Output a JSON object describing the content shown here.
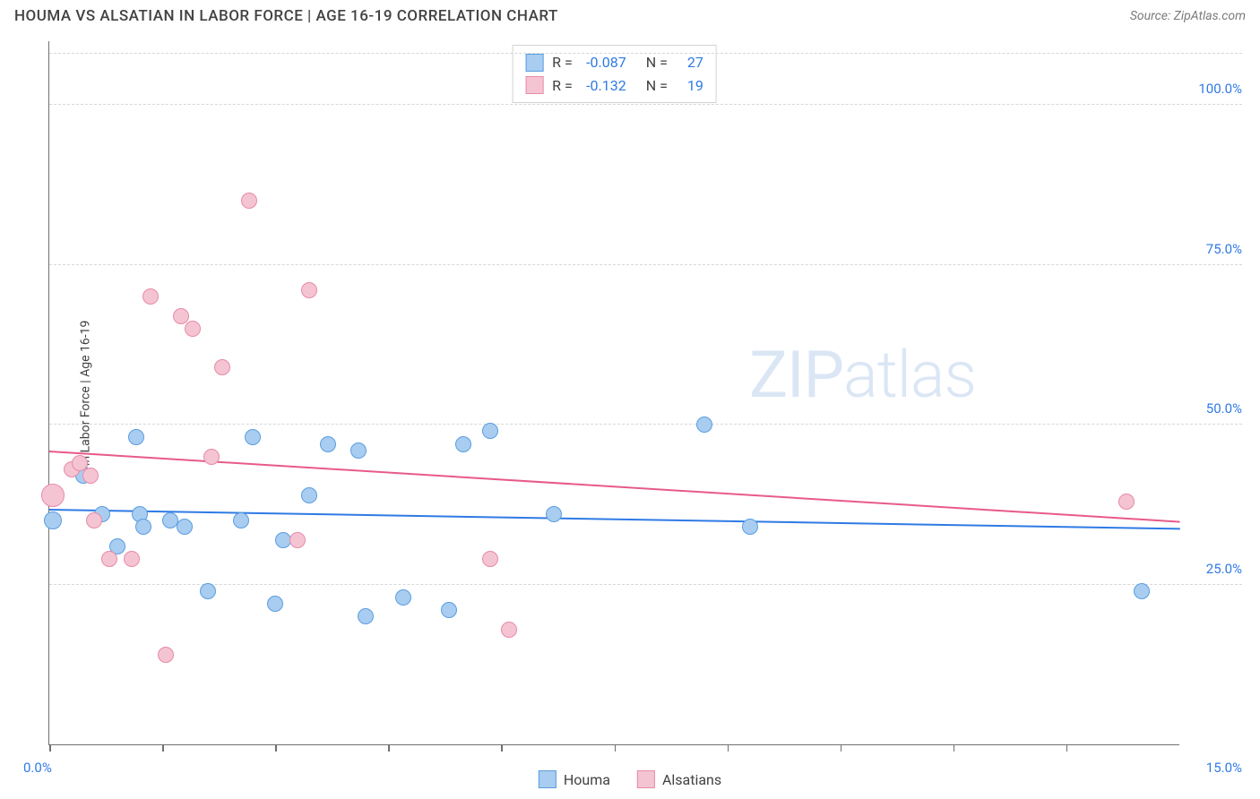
{
  "header": {
    "title": "HOUMA VS ALSATIAN IN LABOR FORCE | AGE 16-19 CORRELATION CHART",
    "source": "Source: ZipAtlas.com"
  },
  "chart": {
    "type": "scatter",
    "ylabel": "In Labor Force | Age 16-19",
    "xlim": [
      0,
      15
    ],
    "ylim": [
      0,
      110
    ],
    "xticks_pct": [
      0,
      10,
      20,
      30,
      40,
      50,
      60,
      70,
      80,
      90
    ],
    "ygrid": [
      {
        "val": 25,
        "label": "25.0%"
      },
      {
        "val": 50,
        "label": "50.0%"
      },
      {
        "val": 75,
        "label": "75.0%"
      },
      {
        "val": 100,
        "label": "100.0%"
      },
      {
        "val": 108,
        "label": ""
      }
    ],
    "xlabel_min": "0.0%",
    "xlabel_max": "15.0%",
    "background_color": "#ffffff",
    "grid_color": "#d7d7d7",
    "axis_color": "#707070",
    "watermark": "ZIPatlas",
    "series": [
      {
        "name": "Houma",
        "fill": "#a8cdf0",
        "stroke": "#5a9de0",
        "trend_color": "#2f7ae5",
        "R": "-0.087",
        "N": "27",
        "trend": {
          "y1": 37,
          "y2": 34
        },
        "points": [
          {
            "x": 0.05,
            "y": 35,
            "r": 10
          },
          {
            "x": 0.4,
            "y": 43,
            "r": 9
          },
          {
            "x": 0.45,
            "y": 42,
            "r": 9
          },
          {
            "x": 0.7,
            "y": 36,
            "r": 9
          },
          {
            "x": 0.9,
            "y": 31,
            "r": 9
          },
          {
            "x": 1.15,
            "y": 48,
            "r": 9
          },
          {
            "x": 1.2,
            "y": 36,
            "r": 9
          },
          {
            "x": 1.25,
            "y": 34,
            "r": 9
          },
          {
            "x": 1.6,
            "y": 35,
            "r": 9
          },
          {
            "x": 1.8,
            "y": 34,
            "r": 9
          },
          {
            "x": 2.1,
            "y": 24,
            "r": 9
          },
          {
            "x": 2.55,
            "y": 35,
            "r": 9
          },
          {
            "x": 2.7,
            "y": 48,
            "r": 9
          },
          {
            "x": 3.1,
            "y": 32,
            "r": 9
          },
          {
            "x": 3.0,
            "y": 22,
            "r": 9
          },
          {
            "x": 3.45,
            "y": 39,
            "r": 9
          },
          {
            "x": 3.7,
            "y": 47,
            "r": 9
          },
          {
            "x": 4.1,
            "y": 46,
            "r": 9
          },
          {
            "x": 4.2,
            "y": 20,
            "r": 9
          },
          {
            "x": 4.7,
            "y": 23,
            "r": 9
          },
          {
            "x": 5.3,
            "y": 21,
            "r": 9
          },
          {
            "x": 5.5,
            "y": 47,
            "r": 9
          },
          {
            "x": 5.85,
            "y": 49,
            "r": 9
          },
          {
            "x": 6.7,
            "y": 36,
            "r": 9
          },
          {
            "x": 8.7,
            "y": 50,
            "r": 9
          },
          {
            "x": 9.3,
            "y": 34,
            "r": 9
          },
          {
            "x": 14.5,
            "y": 24,
            "r": 9
          }
        ]
      },
      {
        "name": "Alsatians",
        "fill": "#f5c4d2",
        "stroke": "#e88aa8",
        "trend_color": "#e85a8a",
        "R": "-0.132",
        "N": "19",
        "trend": {
          "y1": 46,
          "y2": 35
        },
        "points": [
          {
            "x": 0.05,
            "y": 39,
            "r": 13
          },
          {
            "x": 0.3,
            "y": 43,
            "r": 9
          },
          {
            "x": 0.4,
            "y": 44,
            "r": 9
          },
          {
            "x": 0.55,
            "y": 42,
            "r": 9
          },
          {
            "x": 0.6,
            "y": 35,
            "r": 9
          },
          {
            "x": 0.8,
            "y": 29,
            "r": 9
          },
          {
            "x": 1.1,
            "y": 29,
            "r": 9
          },
          {
            "x": 1.35,
            "y": 70,
            "r": 9
          },
          {
            "x": 1.55,
            "y": 14,
            "r": 9
          },
          {
            "x": 1.75,
            "y": 67,
            "r": 9
          },
          {
            "x": 1.9,
            "y": 65,
            "r": 9
          },
          {
            "x": 2.15,
            "y": 45,
            "r": 9
          },
          {
            "x": 2.3,
            "y": 59,
            "r": 9
          },
          {
            "x": 2.65,
            "y": 85,
            "r": 9
          },
          {
            "x": 3.3,
            "y": 32,
            "r": 9
          },
          {
            "x": 3.45,
            "y": 71,
            "r": 9
          },
          {
            "x": 5.85,
            "y": 29,
            "r": 9
          },
          {
            "x": 6.1,
            "y": 18,
            "r": 9
          },
          {
            "x": 14.3,
            "y": 38,
            "r": 9
          }
        ]
      }
    ],
    "corr_legend": {
      "R_label": "R =",
      "N_label": "N ="
    },
    "bottom_legend": [
      {
        "label": "Houma",
        "fill": "#a8cdf0",
        "stroke": "#5a9de0"
      },
      {
        "label": "Alsatians",
        "fill": "#f5c4d2",
        "stroke": "#e88aa8"
      }
    ]
  }
}
